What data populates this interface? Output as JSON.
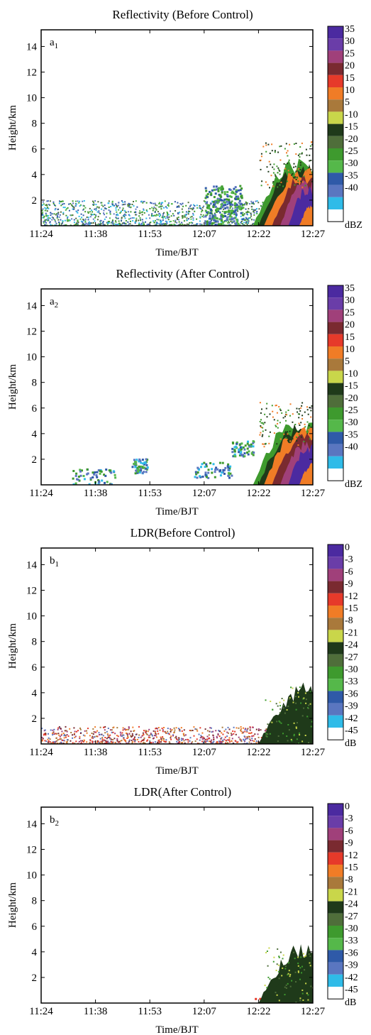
{
  "chart_data": [
    {
      "type": "heatmap",
      "panel_label": "a",
      "panel_sub": "1",
      "title": "Reflectivity (Before Control)",
      "xlabel": "Time/BJT",
      "ylabel": "Height/km",
      "x_ticks": [
        "11:24",
        "11:38",
        "11:53",
        "12:07",
        "12:22",
        "12:27"
      ],
      "y_ticks": [
        2,
        4,
        6,
        8,
        10,
        12,
        14
      ],
      "ylim": [
        0,
        15.3
      ],
      "colorbar_labels": [
        "35",
        "30",
        "25",
        "20",
        "15",
        "10",
        "5",
        "-10",
        "-15",
        "-20",
        "-25",
        "-30",
        "-35",
        "-40"
      ],
      "colorbar_unit": "dBZ",
      "colorbar_colors": [
        "#4b2aa0",
        "#6a3da8",
        "#a0407a",
        "#7a2a30",
        "#e63a2a",
        "#f07c26",
        "#a9793b",
        "#c9d64a",
        "#1f3a1a",
        "#4f6e3a",
        "#3e9a2e",
        "#55b84a",
        "#2f5aa8",
        "#5a76c0",
        "#2fbbe8",
        "#ffffff"
      ],
      "features": {
        "ground_clutter": true,
        "precipitation": true
      }
    },
    {
      "type": "heatmap",
      "panel_label": "a",
      "panel_sub": "2",
      "title": "Reflectivity (After Control)",
      "xlabel": "Time/BJT",
      "ylabel": "Height/km",
      "x_ticks": [
        "11:24",
        "11:38",
        "11:53",
        "12:07",
        "12:22",
        "12:27"
      ],
      "y_ticks": [
        2,
        4,
        6,
        8,
        10,
        12,
        14
      ],
      "ylim": [
        0,
        15.3
      ],
      "colorbar_labels": [
        "35",
        "30",
        "25",
        "20",
        "15",
        "10",
        "5",
        "-10",
        "-15",
        "-20",
        "-25",
        "-30",
        "-35",
        "-40"
      ],
      "colorbar_unit": "dBZ",
      "colorbar_colors": [
        "#4b2aa0",
        "#6a3da8",
        "#a0407a",
        "#7a2a30",
        "#e63a2a",
        "#f07c26",
        "#a9793b",
        "#c9d64a",
        "#1f3a1a",
        "#4f6e3a",
        "#3e9a2e",
        "#55b84a",
        "#2f5aa8",
        "#5a76c0",
        "#2fbbe8",
        "#ffffff"
      ],
      "features": {
        "ground_clutter": false,
        "precipitation": true
      }
    },
    {
      "type": "heatmap",
      "panel_label": "b",
      "panel_sub": "1",
      "title": "LDR(Before Control)",
      "xlabel": "Time/BJT",
      "ylabel": "Height/km",
      "x_ticks": [
        "11:24",
        "11:38",
        "11:53",
        "12:07",
        "12:22",
        "12:27"
      ],
      "y_ticks": [
        2,
        4,
        6,
        8,
        10,
        12,
        14
      ],
      "ylim": [
        0,
        15.3
      ],
      "colorbar_labels": [
        "0",
        "-3",
        "-6",
        "-9",
        "-12",
        "-15",
        "-8",
        "-21",
        "-24",
        "-27",
        "-30",
        "-33",
        "-36",
        "-39",
        "-42",
        "-45"
      ],
      "colorbar_unit": "dB",
      "colorbar_colors": [
        "#4b2aa0",
        "#6a3da8",
        "#a0407a",
        "#7a2a30",
        "#e63a2a",
        "#f07c26",
        "#a9793b",
        "#c9d64a",
        "#1f3a1a",
        "#4f6e3a",
        "#3e9a2e",
        "#55b84a",
        "#2f5aa8",
        "#5a76c0",
        "#2fbbe8",
        "#ffffff"
      ],
      "features": {
        "ground_clutter": true,
        "precipitation": true
      }
    },
    {
      "type": "heatmap",
      "panel_label": "b",
      "panel_sub": "2",
      "title": "LDR(After Control)",
      "xlabel": "Time/BJT",
      "ylabel": "Height/km",
      "x_ticks": [
        "11:24",
        "11:38",
        "11:53",
        "12:07",
        "12:22",
        "12:27"
      ],
      "y_ticks": [
        2,
        4,
        6,
        8,
        10,
        12,
        14
      ],
      "ylim": [
        0,
        15.3
      ],
      "colorbar_labels": [
        "0",
        "-3",
        "-6",
        "-9",
        "-12",
        "-15",
        "-8",
        "-21",
        "-24",
        "-27",
        "-30",
        "-33",
        "-36",
        "-39",
        "-42",
        "-45"
      ],
      "colorbar_unit": "dB",
      "colorbar_colors": [
        "#4b2aa0",
        "#6a3da8",
        "#a0407a",
        "#7a2a30",
        "#e63a2a",
        "#f07c26",
        "#a9793b",
        "#c9d64a",
        "#1f3a1a",
        "#4f6e3a",
        "#3e9a2e",
        "#55b84a",
        "#2f5aa8",
        "#5a76c0",
        "#2fbbe8",
        "#ffffff"
      ],
      "features": {
        "ground_clutter": false,
        "precipitation": true
      }
    }
  ]
}
